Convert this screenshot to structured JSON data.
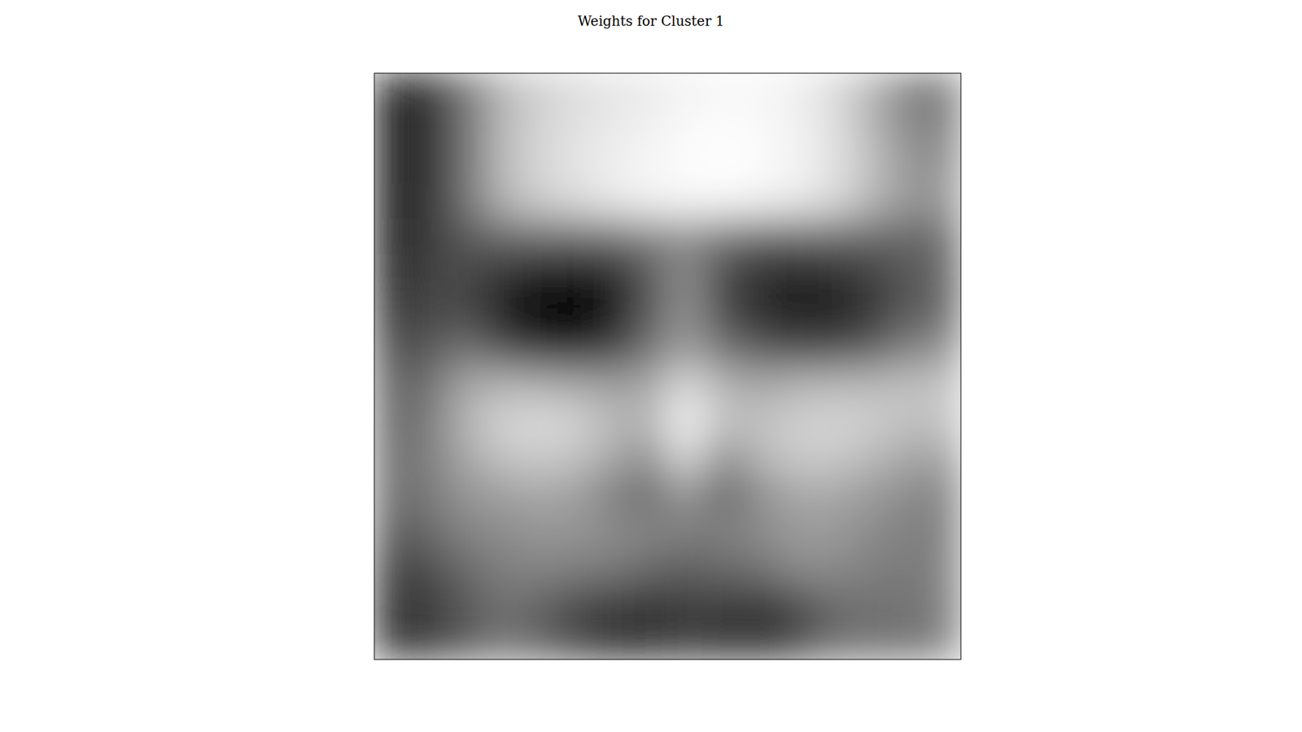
{
  "chart_data": {
    "type": "heatmap",
    "title": "Weights for Cluster 1",
    "color": "gray",
    "tick_labels": false,
    "cells": [
      [
        0.13,
        0.2,
        0.45,
        0.7,
        0.8,
        0.85,
        0.88,
        0.9,
        0.93,
        0.95,
        0.95,
        0.92,
        0.85,
        0.7,
        0.5,
        0.45
      ],
      [
        0.12,
        0.2,
        0.45,
        0.72,
        0.82,
        0.87,
        0.9,
        0.93,
        0.96,
        0.97,
        0.96,
        0.93,
        0.87,
        0.72,
        0.55,
        0.5
      ],
      [
        0.12,
        0.2,
        0.45,
        0.72,
        0.83,
        0.88,
        0.92,
        0.95,
        0.97,
        0.98,
        0.97,
        0.94,
        0.88,
        0.75,
        0.6,
        0.55
      ],
      [
        0.12,
        0.22,
        0.45,
        0.7,
        0.8,
        0.85,
        0.9,
        0.93,
        0.95,
        0.95,
        0.93,
        0.9,
        0.85,
        0.72,
        0.6,
        0.58
      ],
      [
        0.12,
        0.25,
        0.35,
        0.4,
        0.4,
        0.4,
        0.42,
        0.5,
        0.55,
        0.45,
        0.38,
        0.38,
        0.4,
        0.4,
        0.4,
        0.42
      ],
      [
        0.14,
        0.28,
        0.3,
        0.2,
        0.12,
        0.1,
        0.15,
        0.35,
        0.55,
        0.3,
        0.2,
        0.15,
        0.18,
        0.25,
        0.35,
        0.4
      ],
      [
        0.2,
        0.3,
        0.3,
        0.12,
        0.03,
        0.02,
        0.1,
        0.35,
        0.58,
        0.3,
        0.18,
        0.12,
        0.15,
        0.2,
        0.35,
        0.4
      ],
      [
        0.3,
        0.35,
        0.45,
        0.3,
        0.18,
        0.15,
        0.25,
        0.45,
        0.62,
        0.45,
        0.35,
        0.28,
        0.3,
        0.35,
        0.5,
        0.55
      ],
      [
        0.38,
        0.45,
        0.65,
        0.7,
        0.68,
        0.65,
        0.62,
        0.65,
        0.85,
        0.7,
        0.65,
        0.7,
        0.72,
        0.72,
        0.75,
        0.75
      ],
      [
        0.4,
        0.48,
        0.7,
        0.82,
        0.85,
        0.82,
        0.72,
        0.7,
        0.95,
        0.75,
        0.75,
        0.8,
        0.82,
        0.8,
        0.75,
        0.75
      ],
      [
        0.42,
        0.5,
        0.65,
        0.75,
        0.78,
        0.75,
        0.65,
        0.55,
        0.85,
        0.55,
        0.7,
        0.78,
        0.78,
        0.72,
        0.65,
        0.62
      ],
      [
        0.42,
        0.48,
        0.58,
        0.62,
        0.65,
        0.62,
        0.5,
        0.42,
        0.6,
        0.4,
        0.55,
        0.65,
        0.65,
        0.6,
        0.55,
        0.5
      ],
      [
        0.35,
        0.42,
        0.52,
        0.55,
        0.58,
        0.58,
        0.55,
        0.52,
        0.5,
        0.5,
        0.55,
        0.6,
        0.6,
        0.55,
        0.5,
        0.5
      ],
      [
        0.25,
        0.32,
        0.42,
        0.5,
        0.52,
        0.5,
        0.48,
        0.42,
        0.38,
        0.42,
        0.45,
        0.55,
        0.55,
        0.5,
        0.48,
        0.5
      ],
      [
        0.2,
        0.25,
        0.35,
        0.45,
        0.4,
        0.3,
        0.25,
        0.22,
        0.25,
        0.25,
        0.22,
        0.3,
        0.42,
        0.45,
        0.45,
        0.5
      ],
      [
        0.2,
        0.25,
        0.35,
        0.45,
        0.38,
        0.28,
        0.2,
        0.2,
        0.25,
        0.22,
        0.2,
        0.28,
        0.42,
        0.45,
        0.45,
        0.5
      ]
    ]
  }
}
